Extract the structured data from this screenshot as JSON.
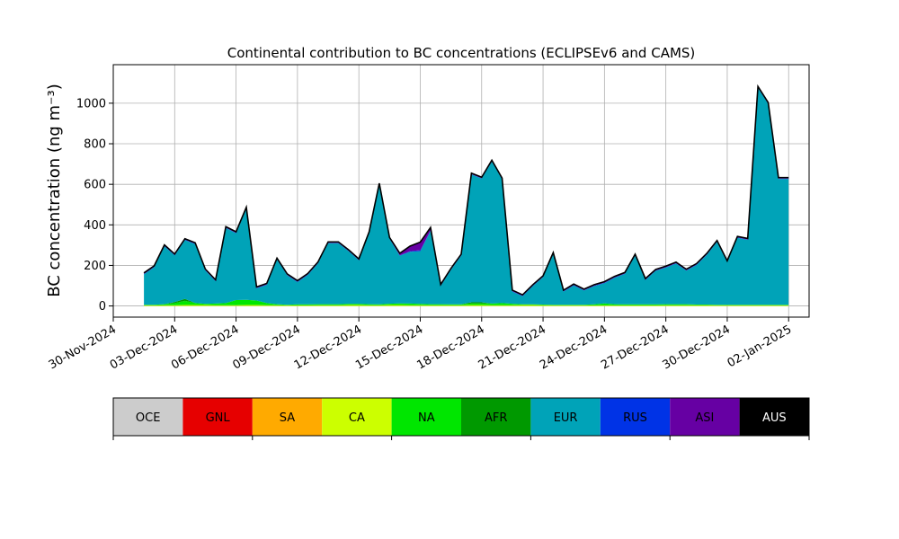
{
  "chart_data": {
    "type": "area",
    "title": "Continental contribution to BC concentrations (ECLIPSEv6 and CAMS)",
    "ylabel": "BC concentration (ng m⁻³)",
    "xlabel": "",
    "x_range": [
      "2024-11-30",
      "2025-01-03"
    ],
    "ylim": [
      -55,
      1190
    ],
    "grid": true,
    "stacked": true,
    "x_ticks": [
      "30-Nov-2024",
      "03-Dec-2024",
      "06-Dec-2024",
      "09-Dec-2024",
      "12-Dec-2024",
      "15-Dec-2024",
      "18-Dec-2024",
      "21-Dec-2024",
      "24-Dec-2024",
      "27-Dec-2024",
      "30-Dec-2024",
      "02-Jan-2025"
    ],
    "y_ticks": [
      0,
      200,
      400,
      600,
      800,
      1000
    ],
    "legend": {
      "placement": "bottom",
      "entries": [
        {
          "name": "OCE",
          "color": "#cccccc",
          "text_color": "#000000"
        },
        {
          "name": "GNL",
          "color": "#e60000",
          "text_color": "#000000"
        },
        {
          "name": "SA",
          "color": "#ffaa00",
          "text_color": "#000000"
        },
        {
          "name": "CA",
          "color": "#ccff00",
          "text_color": "#000000"
        },
        {
          "name": "NA",
          "color": "#00e600",
          "text_color": "#000000"
        },
        {
          "name": "AFR",
          "color": "#009900",
          "text_color": "#000000"
        },
        {
          "name": "EUR",
          "color": "#00a3b8",
          "text_color": "#000000"
        },
        {
          "name": "RUS",
          "color": "#0033e6",
          "text_color": "#000000"
        },
        {
          "name": "ASI",
          "color": "#6600a3",
          "text_color": "#000000"
        },
        {
          "name": "AUS",
          "color": "#000000",
          "text_color": "#ffffff"
        }
      ]
    },
    "x": [
      "2024-12-01T12",
      "2024-12-02",
      "2024-12-02T12",
      "2024-12-03",
      "2024-12-03T12",
      "2024-12-04",
      "2024-12-04T12",
      "2024-12-05",
      "2024-12-05T12",
      "2024-12-06",
      "2024-12-06T12",
      "2024-12-07",
      "2024-12-07T12",
      "2024-12-08",
      "2024-12-08T12",
      "2024-12-09",
      "2024-12-09T12",
      "2024-12-10",
      "2024-12-10T12",
      "2024-12-11",
      "2024-12-11T12",
      "2024-12-12",
      "2024-12-12T12",
      "2024-12-13",
      "2024-12-13T12",
      "2024-12-14",
      "2024-12-14T12",
      "2024-12-15",
      "2024-12-15T12",
      "2024-12-16",
      "2024-12-16T12",
      "2024-12-17",
      "2024-12-17T12",
      "2024-12-18",
      "2024-12-18T12",
      "2024-12-19",
      "2024-12-19T12",
      "2024-12-20",
      "2024-12-20T12",
      "2024-12-21",
      "2024-12-21T12",
      "2024-12-22",
      "2024-12-22T12",
      "2024-12-23",
      "2024-12-23T12",
      "2024-12-24",
      "2024-12-24T12",
      "2024-12-25",
      "2024-12-25T12",
      "2024-12-26",
      "2024-12-26T12",
      "2024-12-27",
      "2024-12-27T12",
      "2024-12-28",
      "2024-12-28T12",
      "2024-12-29",
      "2024-12-29T12",
      "2024-12-30",
      "2024-12-30T12",
      "2024-12-31",
      "2024-12-31T12",
      "2025-01-01",
      "2025-01-01T12",
      "2025-01-02"
    ],
    "series": [
      {
        "name": "CA",
        "values": [
          3,
          3,
          4,
          4,
          5,
          5,
          5,
          4,
          4,
          4,
          5,
          5,
          4,
          4,
          3,
          3,
          3,
          4,
          4,
          4,
          5,
          5,
          4,
          4,
          5,
          5,
          4,
          4,
          4,
          4,
          4,
          4,
          5,
          5,
          4,
          4,
          4,
          5,
          5,
          4,
          3,
          3,
          3,
          3,
          3,
          3,
          3,
          3,
          3,
          3,
          3,
          4,
          4,
          4,
          4,
          4,
          3,
          3,
          3,
          3,
          3,
          3,
          3,
          3
        ]
      },
      {
        "name": "NA",
        "values": [
          3,
          3,
          5,
          10,
          20,
          10,
          5,
          8,
          10,
          25,
          25,
          22,
          10,
          5,
          3,
          5,
          5,
          5,
          5,
          5,
          5,
          5,
          5,
          4,
          6,
          8,
          8,
          6,
          5,
          5,
          4,
          4,
          8,
          8,
          8,
          10,
          7,
          3,
          3,
          3,
          3,
          3,
          3,
          3,
          5,
          10,
          6,
          5,
          5,
          5,
          5,
          5,
          5,
          5,
          3,
          3,
          3,
          3,
          3,
          3,
          3,
          3,
          3,
          3
        ]
      },
      {
        "name": "AFR",
        "values": [
          0,
          0,
          0,
          5,
          10,
          0,
          0,
          0,
          0,
          0,
          0,
          0,
          0,
          0,
          0,
          0,
          0,
          0,
          0,
          0,
          0,
          0,
          0,
          0,
          0,
          0,
          0,
          0,
          0,
          0,
          0,
          0,
          5,
          5,
          0,
          0,
          0,
          0,
          0,
          0,
          0,
          0,
          0,
          0,
          0,
          0,
          0,
          0,
          0,
          0,
          0,
          0,
          0,
          0,
          0,
          0,
          0,
          0,
          0,
          0,
          0,
          0,
          0,
          0
        ]
      },
      {
        "name": "EUR",
        "values": [
          150,
          185,
          285,
          230,
          290,
          290,
          165,
          110,
          370,
          330,
          450,
          60,
          90,
          220,
          145,
          110,
          145,
          200,
          300,
          300,
          260,
          215,
          350,
          590,
          320,
          235,
          255,
          260,
          360,
          90,
          170,
          240,
          630,
          610,
          700,
          610,
          60,
          40,
          90,
          135,
          250,
          65,
          95,
          70,
          90,
          100,
          130,
          150,
          240,
          120,
          165,
          180,
          200,
          165,
          195,
          245,
          310,
          210,
          330,
          320,
          1070,
          990,
          620,
          620
        ]
      },
      {
        "name": "RUS",
        "values": [
          2,
          2,
          2,
          2,
          2,
          2,
          2,
          2,
          2,
          2,
          2,
          2,
          2,
          2,
          2,
          2,
          2,
          2,
          2,
          2,
          2,
          2,
          2,
          2,
          2,
          2,
          3,
          5,
          3,
          2,
          2,
          2,
          2,
          2,
          2,
          2,
          2,
          2,
          2,
          2,
          2,
          2,
          2,
          2,
          2,
          2,
          2,
          2,
          2,
          2,
          2,
          2,
          2,
          2,
          2,
          2,
          2,
          2,
          2,
          2,
          2,
          2,
          2,
          2
        ]
      },
      {
        "name": "ASI",
        "values": [
          5,
          5,
          5,
          5,
          5,
          5,
          5,
          5,
          5,
          5,
          5,
          5,
          5,
          5,
          5,
          5,
          5,
          5,
          5,
          5,
          5,
          5,
          5,
          5,
          5,
          10,
          25,
          40,
          15,
          5,
          5,
          5,
          5,
          5,
          5,
          5,
          5,
          5,
          5,
          5,
          5,
          5,
          5,
          5,
          5,
          5,
          5,
          5,
          5,
          5,
          5,
          5,
          5,
          5,
          5,
          5,
          5,
          5,
          5,
          5,
          5,
          5,
          5,
          5
        ]
      },
      {
        "name": "AUS",
        "values": [
          0,
          0,
          0,
          0,
          0,
          0,
          0,
          0,
          0,
          0,
          0,
          0,
          0,
          0,
          0,
          0,
          0,
          0,
          0,
          0,
          0,
          0,
          0,
          0,
          0,
          0,
          0,
          0,
          0,
          0,
          0,
          0,
          0,
          0,
          0,
          0,
          0,
          0,
          0,
          0,
          0,
          0,
          0,
          0,
          0,
          0,
          0,
          0,
          0,
          0,
          0,
          0,
          0,
          0,
          0,
          0,
          0,
          0,
          0,
          0,
          0,
          0,
          0,
          0
        ]
      }
    ]
  }
}
